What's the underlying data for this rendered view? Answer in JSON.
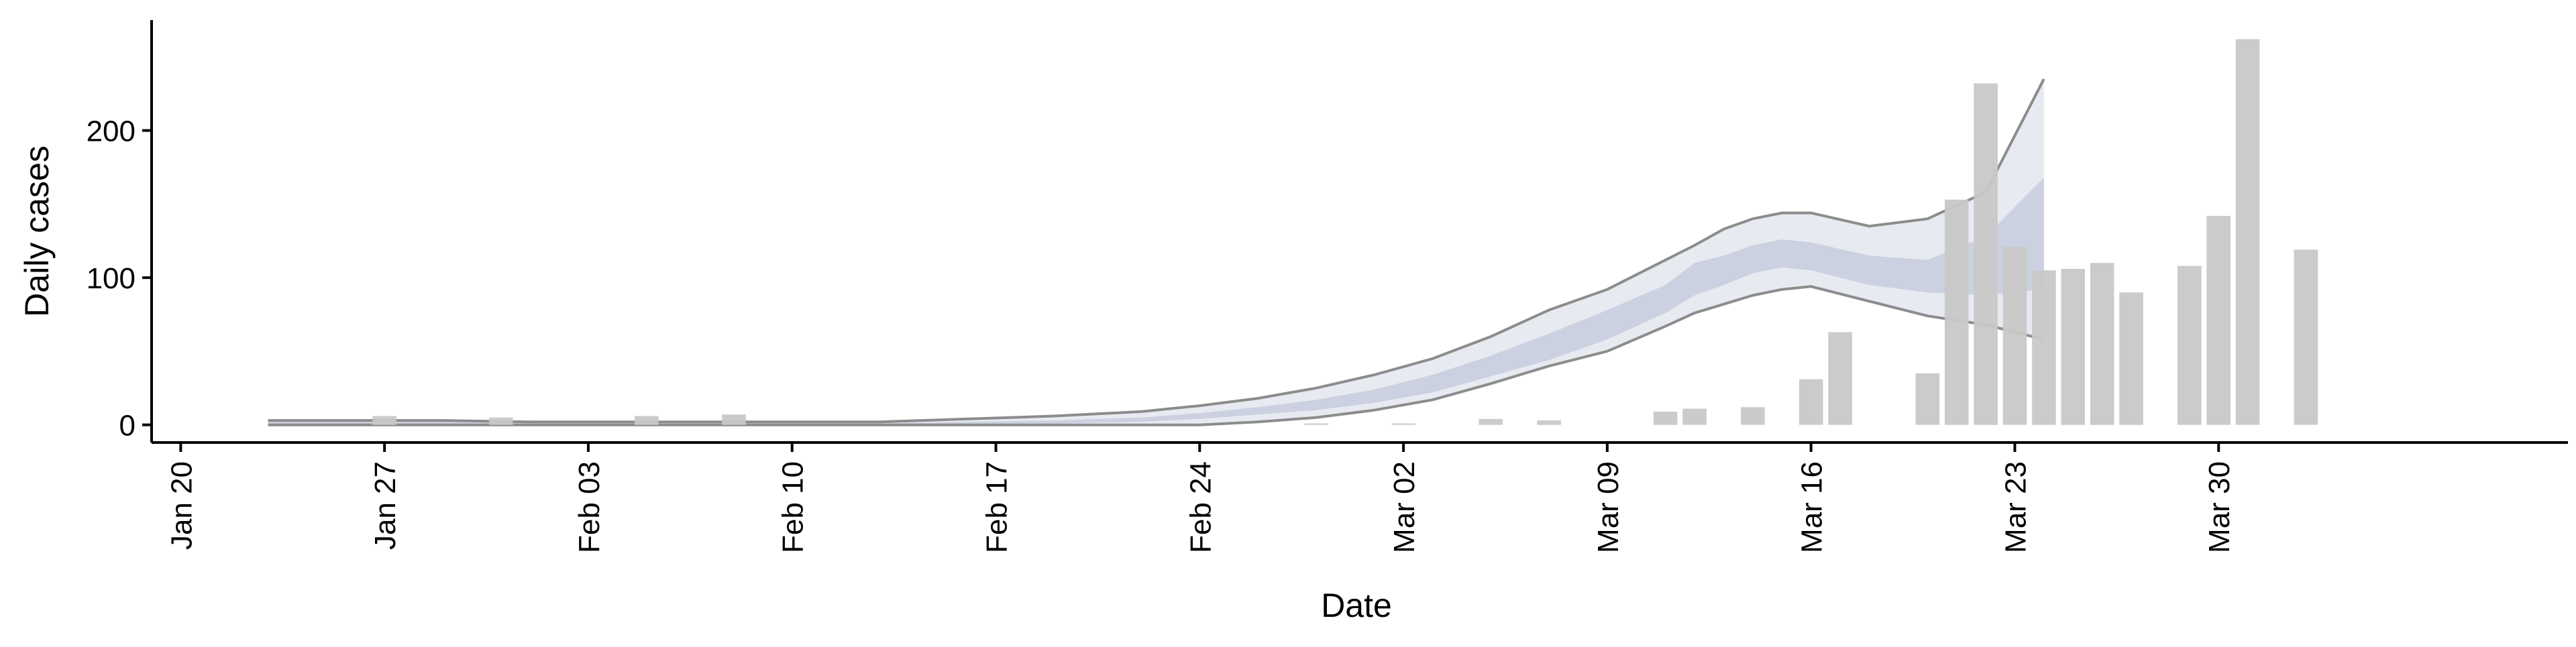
{
  "chart_data": {
    "type": "bar",
    "title": "",
    "xlabel": "Date",
    "ylabel": "Daily cases",
    "xlim": [
      "2020-01-19",
      "2020-04-11"
    ],
    "ylim": [
      -12,
      275
    ],
    "y_ticks": [
      0,
      100,
      200
    ],
    "x_ticks": [
      {
        "date": "2020-01-20",
        "label": "Jan 20"
      },
      {
        "date": "2020-01-27",
        "label": "Jan 27"
      },
      {
        "date": "2020-02-03",
        "label": "Feb 03"
      },
      {
        "date": "2020-02-10",
        "label": "Feb 10"
      },
      {
        "date": "2020-02-17",
        "label": "Feb 17"
      },
      {
        "date": "2020-02-24",
        "label": "Feb 24"
      },
      {
        "date": "2020-03-02",
        "label": "Mar 02"
      },
      {
        "date": "2020-03-09",
        "label": "Mar 09"
      },
      {
        "date": "2020-03-16",
        "label": "Mar 16"
      },
      {
        "date": "2020-03-23",
        "label": "Mar 23"
      },
      {
        "date": "2020-03-30",
        "label": "Mar 30"
      }
    ],
    "grid": false,
    "colors": {
      "bars": "#c8c8c8",
      "band_outer": "#e6e8f0",
      "band_inner": "#c9cedf",
      "bound_lines": "#8c8c8c",
      "axis": "#000000"
    },
    "bars": {
      "dates": [
        "2020-01-27",
        "2020-01-31",
        "2020-02-05",
        "2020-02-08",
        "2020-02-28",
        "2020-03-02",
        "2020-03-05",
        "2020-03-07",
        "2020-03-11",
        "2020-03-12",
        "2020-03-14",
        "2020-03-16",
        "2020-03-17",
        "2020-03-20",
        "2020-03-21",
        "2020-03-22",
        "2020-03-23",
        "2020-03-24",
        "2020-03-25",
        "2020-03-26",
        "2020-03-27",
        "2020-03-29",
        "2020-03-30",
        "2020-03-31",
        "2020-04-02"
      ],
      "values": [
        6,
        5,
        6,
        7,
        1,
        1,
        4,
        3,
        9,
        11,
        12,
        31,
        63,
        35,
        153,
        232,
        121,
        105,
        106,
        110,
        90,
        108,
        142,
        262,
        119
      ]
    },
    "estimate": {
      "dates": [
        "2020-01-23",
        "2020-01-26",
        "2020-01-29",
        "2020-02-01",
        "2020-02-04",
        "2020-02-07",
        "2020-02-10",
        "2020-02-13",
        "2020-02-16",
        "2020-02-19",
        "2020-02-22",
        "2020-02-24",
        "2020-02-26",
        "2020-02-28",
        "2020-03-01",
        "2020-03-03",
        "2020-03-05",
        "2020-03-07",
        "2020-03-09",
        "2020-03-11",
        "2020-03-12",
        "2020-03-13",
        "2020-03-14",
        "2020-03-15",
        "2020-03-16",
        "2020-03-18",
        "2020-03-20",
        "2020-03-22",
        "2020-03-24"
      ],
      "upper": [
        3,
        3,
        3,
        2,
        2,
        2,
        2,
        2,
        4,
        6,
        9,
        13,
        18,
        25,
        34,
        45,
        60,
        78,
        92,
        112,
        122,
        133,
        140,
        144,
        144,
        135,
        140,
        158,
        235
      ],
      "inner_upper": [
        2,
        2,
        2,
        1,
        1,
        1,
        1,
        1,
        2,
        3,
        5,
        8,
        12,
        17,
        24,
        34,
        47,
        62,
        78,
        95,
        110,
        115,
        122,
        126,
        124,
        115,
        112,
        128,
        168
      ],
      "inner_lower": [
        0,
        0,
        0,
        0,
        0,
        0,
        0,
        0,
        1,
        1,
        2,
        4,
        7,
        10,
        15,
        22,
        33,
        44,
        58,
        76,
        88,
        95,
        103,
        107,
        105,
        95,
        90,
        88,
        92
      ],
      "lower": [
        0,
        0,
        0,
        0,
        0,
        0,
        0,
        0,
        0,
        0,
        0,
        0,
        2,
        5,
        10,
        17,
        28,
        40,
        50,
        67,
        76,
        82,
        88,
        92,
        94,
        84,
        74,
        68,
        58
      ]
    }
  }
}
